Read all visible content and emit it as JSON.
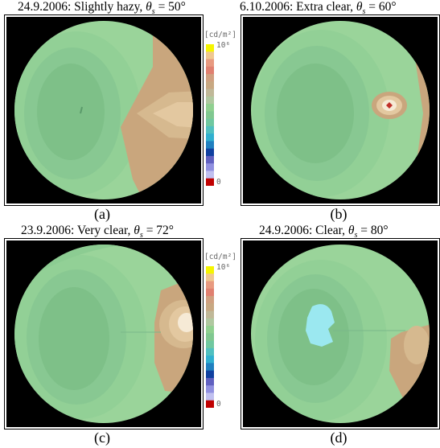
{
  "panels": [
    {
      "title_prefix": "24.9.2006: Slightly hazy, ",
      "theta": "θ",
      "sub": "s",
      "title_suffix": " = 50°",
      "caption": "(a)"
    },
    {
      "title_prefix": "6.10.2006: Extra clear, ",
      "theta": "θ",
      "sub": "s",
      "title_suffix": " = 60°",
      "caption": "(b)"
    },
    {
      "title_prefix": "23.9.2006: Very clear, ",
      "theta": "θ",
      "sub": "s",
      "title_suffix": " = 72°",
      "caption": "(c)"
    },
    {
      "title_prefix": "24.9.2006: Clear, ",
      "theta": "θ",
      "sub": "s",
      "title_suffix": " = 80°",
      "caption": "(d)"
    }
  ],
  "colorbar": {
    "unit": "[cd/m²]",
    "max_label": "10⁶",
    "min_label": "0",
    "colors": [
      "#f5f500",
      "#f0c890",
      "#e89a80",
      "#e08070",
      "#d0a080",
      "#c8a882",
      "#c0b898",
      "#b0c8a0",
      "#90d090",
      "#80c890",
      "#70c8a0",
      "#50c0c0",
      "#30b0d0",
      "#2080c0",
      "#1040a0",
      "#6060c0",
      "#9090e0",
      "#c0c0f0",
      "#c00000"
    ]
  },
  "colors": {
    "sky_dark": "#7ec088",
    "sky_mid": "#8ccc92",
    "sky_light": "#9ad49a",
    "sun_tan": "#c9a67d",
    "sun_light": "#e3c8a0",
    "sun_white": "#f6ead6",
    "sun_core": "#c0302a",
    "cyan": "#9be8f0",
    "black": "#000000"
  }
}
